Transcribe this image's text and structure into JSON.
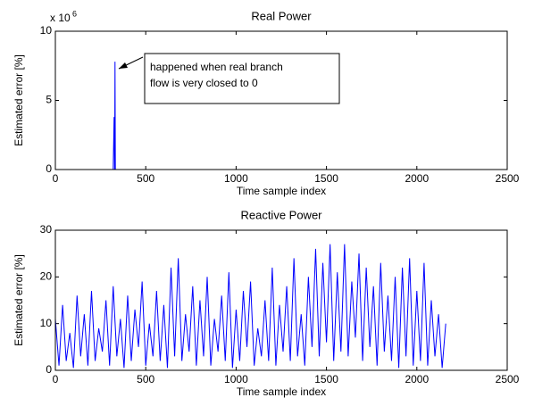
{
  "chart_data": [
    {
      "type": "line",
      "title": "Real Power",
      "xlabel": "Time sample index",
      "ylabel": "Estimated error [%]",
      "y_scale_label": {
        "base": "x 10",
        "exponent": "6"
      },
      "xlim": [
        0,
        2500
      ],
      "xticks": [
        0,
        500,
        1000,
        1500,
        2000,
        2500
      ],
      "ylim": [
        0,
        10
      ],
      "yticks": [
        0,
        5,
        10
      ],
      "series": [
        {
          "color": "#0000ff",
          "x": [
            0,
            320,
            325,
            328,
            330,
            332,
            335,
            2160
          ],
          "values": [
            0,
            0,
            3.8,
            0,
            7.8,
            0,
            0,
            0
          ]
        }
      ],
      "annotation": {
        "lines": [
          "happened when real branch",
          "flow is very closed to 0"
        ]
      }
    },
    {
      "type": "line",
      "title": "Reactive Power",
      "xlabel": "Time sample index",
      "ylabel": "Estimated error [%]",
      "xlim": [
        0,
        2500
      ],
      "xticks": [
        0,
        500,
        1000,
        1500,
        2000,
        2500
      ],
      "ylim": [
        0,
        30
      ],
      "yticks": [
        0,
        10,
        20,
        30
      ],
      "series": [
        {
          "color": "#0000ff",
          "x": [
            0,
            20,
            40,
            60,
            80,
            100,
            120,
            140,
            160,
            180,
            200,
            220,
            240,
            260,
            280,
            300,
            320,
            340,
            360,
            380,
            400,
            420,
            440,
            460,
            480,
            500,
            520,
            540,
            560,
            580,
            600,
            620,
            640,
            660,
            680,
            700,
            720,
            740,
            760,
            780,
            800,
            820,
            840,
            860,
            880,
            900,
            920,
            940,
            960,
            980,
            1000,
            1020,
            1040,
            1060,
            1080,
            1100,
            1120,
            1140,
            1160,
            1180,
            1200,
            1220,
            1240,
            1260,
            1280,
            1300,
            1320,
            1340,
            1360,
            1380,
            1400,
            1420,
            1440,
            1460,
            1480,
            1500,
            1520,
            1540,
            1560,
            1580,
            1600,
            1620,
            1640,
            1660,
            1680,
            1700,
            1720,
            1740,
            1760,
            1780,
            1800,
            1820,
            1840,
            1860,
            1880,
            1900,
            1920,
            1940,
            1960,
            1980,
            2000,
            2020,
            2040,
            2060,
            2080,
            2100,
            2120,
            2140,
            2160
          ],
          "values": [
            11,
            1,
            14,
            2,
            8,
            0.5,
            16,
            3,
            12,
            1,
            17,
            2,
            9,
            4,
            15,
            1,
            18,
            3,
            11,
            0.5,
            16,
            2,
            13,
            5,
            19,
            1,
            10,
            3,
            17,
            2,
            14,
            0.5,
            22,
            3,
            24,
            2,
            12,
            4,
            18,
            1,
            15,
            3,
            20,
            1,
            11,
            4,
            16,
            2,
            21,
            0.5,
            13,
            2,
            17,
            5,
            19,
            1,
            9,
            3,
            15,
            2,
            22,
            1,
            14,
            4,
            18,
            2,
            24,
            3,
            12,
            1,
            20,
            5,
            26,
            3,
            23,
            6,
            27,
            2,
            21,
            4,
            27,
            3,
            19,
            7,
            25,
            2,
            22,
            5,
            18,
            1,
            23,
            4,
            16,
            2,
            20,
            0.5,
            22,
            3,
            24,
            1,
            17,
            2,
            23,
            1,
            15,
            3,
            12,
            0.5,
            10
          ]
        }
      ]
    }
  ]
}
